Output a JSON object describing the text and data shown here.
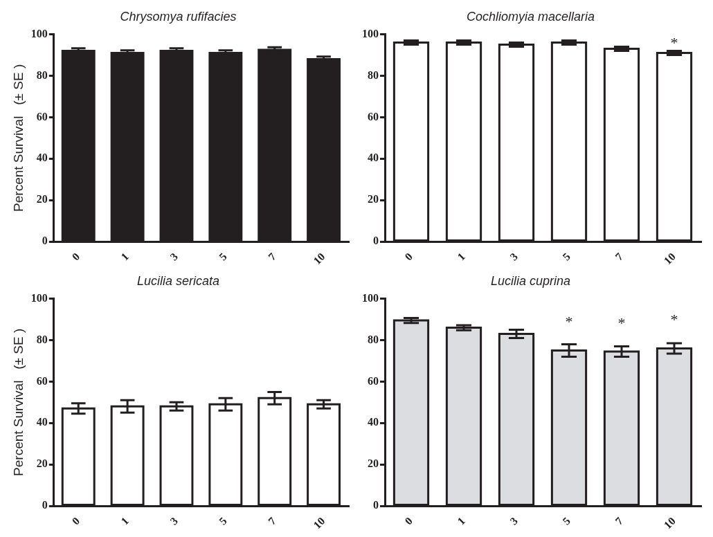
{
  "chart_data": [
    {
      "type": "bar",
      "title": "Chrysomya rufifacies",
      "ylabel": "Percent Survival   (± SE )",
      "categories": [
        "0",
        "1",
        "3",
        "5",
        "7",
        "10"
      ],
      "values": [
        92,
        91,
        92,
        91,
        92.5,
        88
      ],
      "errors": [
        1.3,
        1.3,
        1.3,
        1.3,
        1.3,
        1.3
      ],
      "color": "#231f20",
      "ylim": [
        0,
        100
      ],
      "yticks": [
        0,
        20,
        40,
        60,
        80,
        100
      ],
      "grid": false,
      "legend": false
    },
    {
      "type": "bar",
      "title": "Cochliomyia macellaria",
      "categories": [
        "0",
        "1",
        "3",
        "5",
        "7",
        "10"
      ],
      "values": [
        96,
        96,
        95,
        96,
        93,
        91
      ],
      "errors": [
        1,
        1,
        1,
        1,
        1,
        1
      ],
      "color": "#ffffff",
      "ylim": [
        0,
        100
      ],
      "yticks": [
        0,
        20,
        40,
        60,
        80,
        100
      ],
      "grid": false,
      "legend": false,
      "annotations": [
        {
          "text": "*",
          "x": "10",
          "y": 91
        }
      ]
    },
    {
      "type": "bar",
      "title": "Lucilia sericata",
      "ylabel": "Percent Survival   (± SE )",
      "categories": [
        "0",
        "1",
        "3",
        "5",
        "7",
        "10"
      ],
      "values": [
        47,
        48,
        48,
        49,
        52,
        49
      ],
      "errors": [
        2.5,
        3,
        2,
        3,
        3,
        2
      ],
      "color": "#ffffff",
      "ylim": [
        0,
        100
      ],
      "yticks": [
        0,
        20,
        40,
        60,
        80,
        100
      ],
      "grid": false,
      "legend": false
    },
    {
      "type": "bar",
      "title": "Lucilia cuprina",
      "categories": [
        "0",
        "1",
        "3",
        "5",
        "7",
        "10"
      ],
      "values": [
        89.5,
        86,
        83,
        75,
        74.5,
        76
      ],
      "errors": [
        1.2,
        1.2,
        2,
        3,
        2.5,
        2.5
      ],
      "color": "#dcdde0",
      "ylim": [
        0,
        100
      ],
      "yticks": [
        0,
        20,
        40,
        60,
        80,
        100
      ],
      "grid": false,
      "legend": false,
      "annotations": [
        {
          "text": "*",
          "x": "5",
          "y": 75
        },
        {
          "text": "*",
          "x": "7",
          "y": 74.5
        },
        {
          "text": "*",
          "x": "10",
          "y": 76
        }
      ]
    }
  ]
}
